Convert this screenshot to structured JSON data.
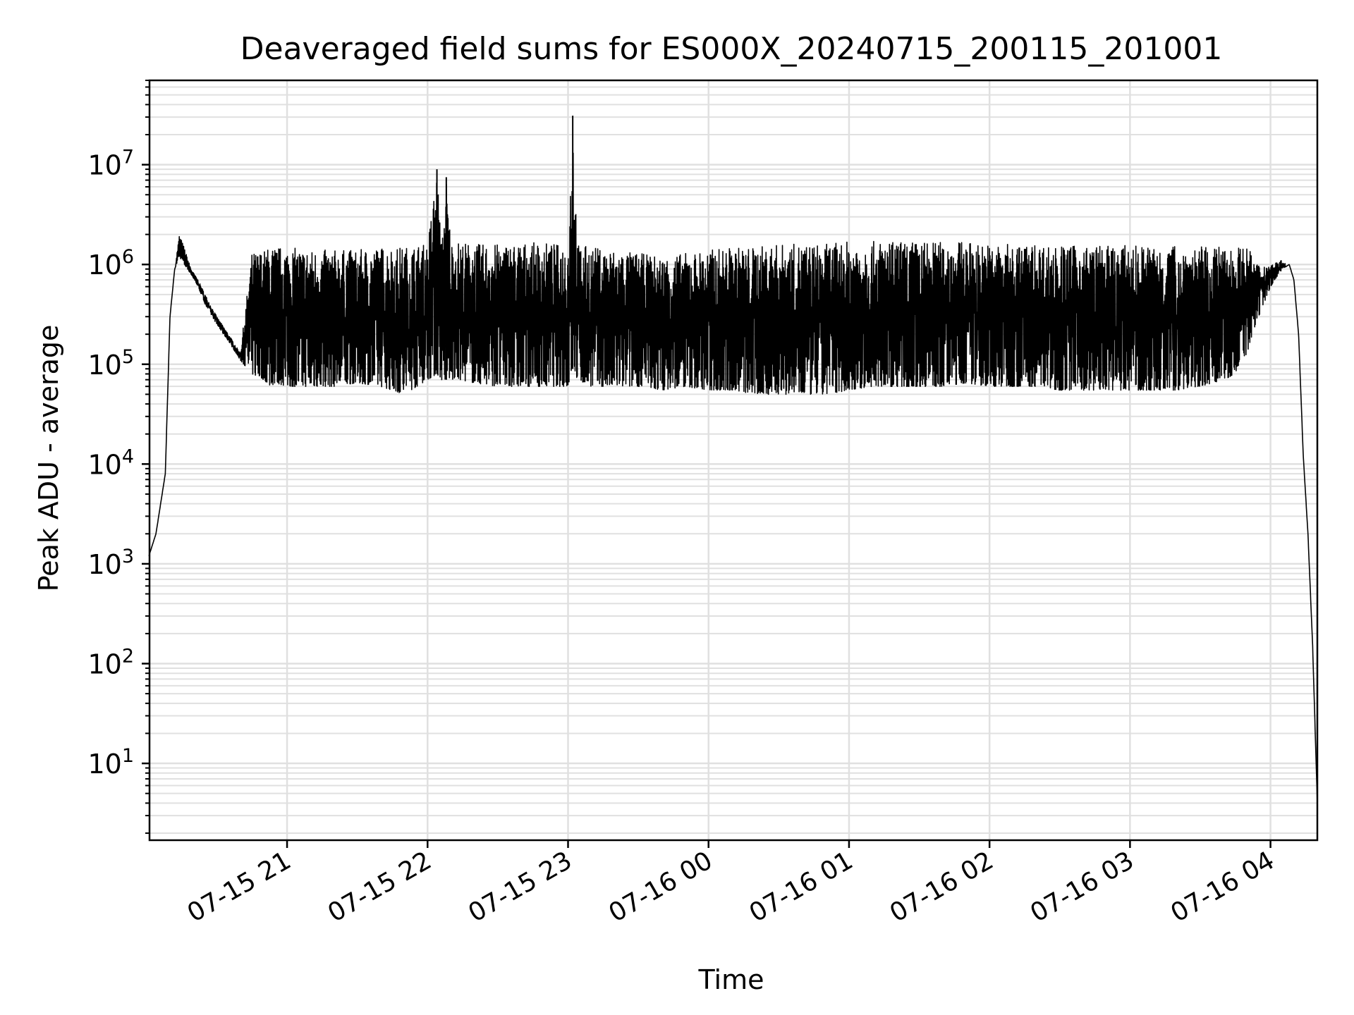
{
  "chart_data": {
    "type": "line",
    "title": "Deaveraged field sums for ES000X_20240715_200115_201001",
    "xlabel": "Time",
    "ylabel": "Peak ADU - average",
    "y_scale": "log",
    "ylim": [
      1.7,
      70000000
    ],
    "xlim": [
      "2024-07-15 20:01:15",
      "2024-07-16 04:20:00"
    ],
    "grid": true,
    "line_color": "#000000",
    "grid_color": "#e0e0e0",
    "x_ticks": [
      {
        "label": "07-15 21",
        "time": "2024-07-15 21:00"
      },
      {
        "label": "07-15 22",
        "time": "2024-07-15 22:00"
      },
      {
        "label": "07-15 23",
        "time": "2024-07-15 23:00"
      },
      {
        "label": "07-16 00",
        "time": "2024-07-16 00:00"
      },
      {
        "label": "07-16 01",
        "time": "2024-07-16 01:00"
      },
      {
        "label": "07-16 02",
        "time": "2024-07-16 02:00"
      },
      {
        "label": "07-16 03",
        "time": "2024-07-16 03:00"
      },
      {
        "label": "07-16 04",
        "time": "2024-07-16 04:00"
      }
    ],
    "y_ticks": [
      {
        "exp": 1,
        "value": 10
      },
      {
        "exp": 2,
        "value": 100
      },
      {
        "exp": 3,
        "value": 1000
      },
      {
        "exp": 4,
        "value": 10000
      },
      {
        "exp": 5,
        "value": 100000
      },
      {
        "exp": 6,
        "value": 1000000
      },
      {
        "exp": 7,
        "value": 10000000
      }
    ],
    "series": [
      {
        "x": [
          "2024-07-15 20:01",
          "2024-07-15 20:04",
          "2024-07-15 20:06",
          "2024-07-15 20:08",
          "2024-07-15 20:10",
          "2024-07-15 20:12",
          "2024-07-15 20:14",
          "2024-07-15 20:16",
          "2024-07-15 20:19",
          "2024-07-15 20:22",
          "2024-07-15 20:25",
          "2024-07-15 20:30",
          "2024-07-15 20:35",
          "2024-07-15 20:40",
          "2024-07-15 20:45",
          "2024-07-15 20:50",
          "2024-07-15 20:53",
          "2024-07-15 20:55",
          "2024-07-15 21:00",
          "2024-07-15 21:10",
          "2024-07-15 21:20",
          "2024-07-15 21:30",
          "2024-07-15 21:40",
          "2024-07-15 21:50",
          "2024-07-15 22:00",
          "2024-07-15 22:04",
          "2024-07-15 22:06",
          "2024-07-15 22:08",
          "2024-07-15 22:10",
          "2024-07-15 22:12",
          "2024-07-15 22:14",
          "2024-07-15 22:20",
          "2024-07-15 22:30",
          "2024-07-15 22:40",
          "2024-07-15 22:50",
          "2024-07-15 22:55",
          "2024-07-15 23:00",
          "2024-07-15 23:02",
          "2024-07-15 23:04",
          "2024-07-15 23:10",
          "2024-07-15 23:20",
          "2024-07-15 23:30",
          "2024-07-15 23:40",
          "2024-07-15 23:50",
          "2024-07-16 00:00",
          "2024-07-16 00:10",
          "2024-07-16 00:20",
          "2024-07-16 00:30",
          "2024-07-16 00:40",
          "2024-07-16 00:50",
          "2024-07-16 01:00",
          "2024-07-16 01:10",
          "2024-07-16 01:20",
          "2024-07-16 01:30",
          "2024-07-16 01:40",
          "2024-07-16 01:50",
          "2024-07-16 02:00",
          "2024-07-16 02:10",
          "2024-07-16 02:20",
          "2024-07-16 02:30",
          "2024-07-16 02:40",
          "2024-07-16 02:50",
          "2024-07-16 03:00",
          "2024-07-16 03:10",
          "2024-07-16 03:20",
          "2024-07-16 03:30",
          "2024-07-16 03:40",
          "2024-07-16 03:45",
          "2024-07-16 03:50",
          "2024-07-16 03:55",
          "2024-07-16 04:00",
          "2024-07-16 04:05",
          "2024-07-16 04:08",
          "2024-07-16 04:10",
          "2024-07-16 04:12",
          "2024-07-16 04:14",
          "2024-07-16 04:16",
          "2024-07-16 04:18",
          "2024-07-16 04:20"
        ],
        "lo": [
          1200,
          2000,
          4000,
          8000,
          300000,
          900000,
          1200000,
          1000000,
          800000,
          600000,
          400000,
          250000,
          170000,
          110000,
          80000,
          70000,
          60000,
          65000,
          60000,
          60000,
          60000,
          65000,
          60000,
          50000,
          70000,
          80000,
          70000,
          70000,
          70000,
          70000,
          70000,
          65000,
          60000,
          60000,
          60000,
          60000,
          60000,
          90000,
          70000,
          60000,
          60000,
          60000,
          55000,
          60000,
          55000,
          55000,
          50000,
          50000,
          50000,
          50000,
          55000,
          60000,
          60000,
          60000,
          60000,
          65000,
          60000,
          60000,
          60000,
          55000,
          55000,
          55000,
          55000,
          55000,
          55000,
          60000,
          70000,
          80000,
          130000,
          300000,
          600000,
          900000,
          1000000,
          700000,
          200000,
          12000,
          2000,
          150,
          4
        ],
        "hi": [
          1200,
          2000,
          4000,
          8000,
          300000,
          900000,
          2000000,
          1500000,
          900000,
          700000,
          500000,
          300000,
          200000,
          130000,
          1300000,
          1400000,
          1500000,
          1500000,
          1500000,
          1400000,
          1400000,
          1400000,
          1500000,
          1500000,
          1600000,
          9000000,
          1600000,
          7500000,
          1700000,
          1700000,
          1700000,
          1600000,
          1600000,
          1650000,
          1650000,
          1600000,
          1600000,
          31000000,
          1600000,
          1500000,
          1400000,
          1300000,
          1200000,
          1300000,
          1400000,
          1500000,
          1500000,
          1600000,
          1600000,
          1600000,
          1700000,
          1700000,
          1700000,
          1700000,
          1700000,
          1700000,
          1600000,
          1600000,
          1600000,
          1550000,
          1550000,
          1550000,
          1550000,
          1550000,
          1550000,
          1500000,
          1500000,
          1500000,
          1500000,
          1000000,
          1000000,
          1100000,
          1000000,
          700000,
          200000,
          12000,
          2000,
          150,
          4
        ]
      }
    ]
  }
}
